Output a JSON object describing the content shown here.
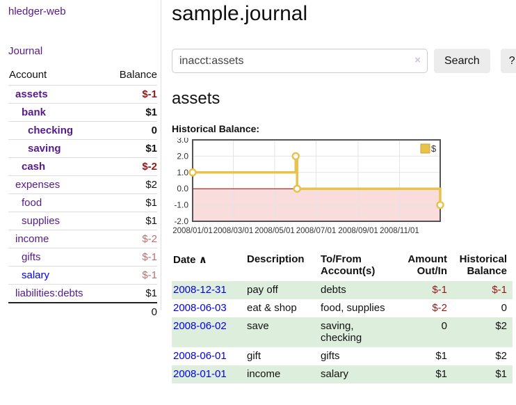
{
  "app": {
    "title": "hledger-web"
  },
  "sidebar": {
    "journal_link": "Journal",
    "accounts_table": {
      "headers": {
        "account": "Account",
        "balance": "Balance"
      },
      "rows": [
        {
          "name": "assets",
          "balance": "$-1"
        },
        {
          "name": "bank",
          "balance": "$1"
        },
        {
          "name": "checking",
          "balance": "0"
        },
        {
          "name": "saving",
          "balance": "$1"
        },
        {
          "name": "cash",
          "balance": "$-2"
        },
        {
          "name": "expenses",
          "balance": "$2"
        },
        {
          "name": "food",
          "balance": "$1"
        },
        {
          "name": "supplies",
          "balance": "$1"
        },
        {
          "name": "income",
          "balance": "$-2"
        },
        {
          "name": "gifts",
          "balance": "$-1"
        },
        {
          "name": "salary",
          "balance": "$-1"
        },
        {
          "name": "liabilities:debts",
          "balance": "$1"
        }
      ],
      "total": "0"
    }
  },
  "main": {
    "title": "sample.journal",
    "search": {
      "value": "inacct:assets",
      "clear_icon": "×",
      "button_label": "Search",
      "help_label": "?"
    },
    "account_heading": "assets",
    "chart_label": "Historical Balance:",
    "register": {
      "headers": {
        "date": "Date",
        "sort_indicator": "∧",
        "description": "Description",
        "accounts": "To/From Account(s)",
        "amount": "Amount Out/In",
        "balance": "Historical Balance"
      },
      "rows": [
        {
          "date": "2008-12-31",
          "description": "pay off",
          "accounts": "debts",
          "amount": "$-1",
          "balance": "$-1"
        },
        {
          "date": "2008-06-03",
          "description": "eat & shop",
          "accounts": "food, supplies",
          "amount": "$-2",
          "balance": "0"
        },
        {
          "date": "2008-06-02",
          "description": "save",
          "accounts": "saving, checking",
          "amount": "0",
          "balance": "$2"
        },
        {
          "date": "2008-06-01",
          "description": "gift",
          "accounts": "gifts",
          "amount": "$1",
          "balance": "$2"
        },
        {
          "date": "2008-01-01",
          "description": "income",
          "accounts": "salary",
          "amount": "$1",
          "balance": "$1"
        }
      ]
    }
  },
  "chart_data": {
    "type": "line",
    "step": true,
    "title": "Historical Balance:",
    "series": [
      {
        "name": "$",
        "color": "#e8c24a",
        "points": [
          {
            "date": "2008-01-01",
            "value": 1
          },
          {
            "date": "2008-06-01",
            "value": 2
          },
          {
            "date": "2008-06-03",
            "value": 0
          },
          {
            "date": "2008-12-31",
            "value": -1
          }
        ]
      }
    ],
    "x_range": [
      "2008-01-01",
      "2008-12-31"
    ],
    "x_ticks": [
      "2008/01/01",
      "2008/03/01",
      "2008/05/01",
      "2008/07/01",
      "2008/09/01",
      "2008/11/01"
    ],
    "y_ticks": [
      3.0,
      2.0,
      1.0,
      0.0,
      -1.0,
      -2.0
    ],
    "ylim": [
      -2,
      3
    ],
    "grid": true,
    "legend_position": "top-right",
    "negative_region_color": "#f9dcdc",
    "zero_line_color": "#8b0000",
    "border_color": "#545454"
  },
  "colors": {
    "link_purple": "#551A8B",
    "link_blue": "#0000EE",
    "negative_strong": "#951717",
    "negative_light": "#b87070",
    "row_stripe_green": "#ddeedd",
    "series_gold": "#e8c24a"
  }
}
